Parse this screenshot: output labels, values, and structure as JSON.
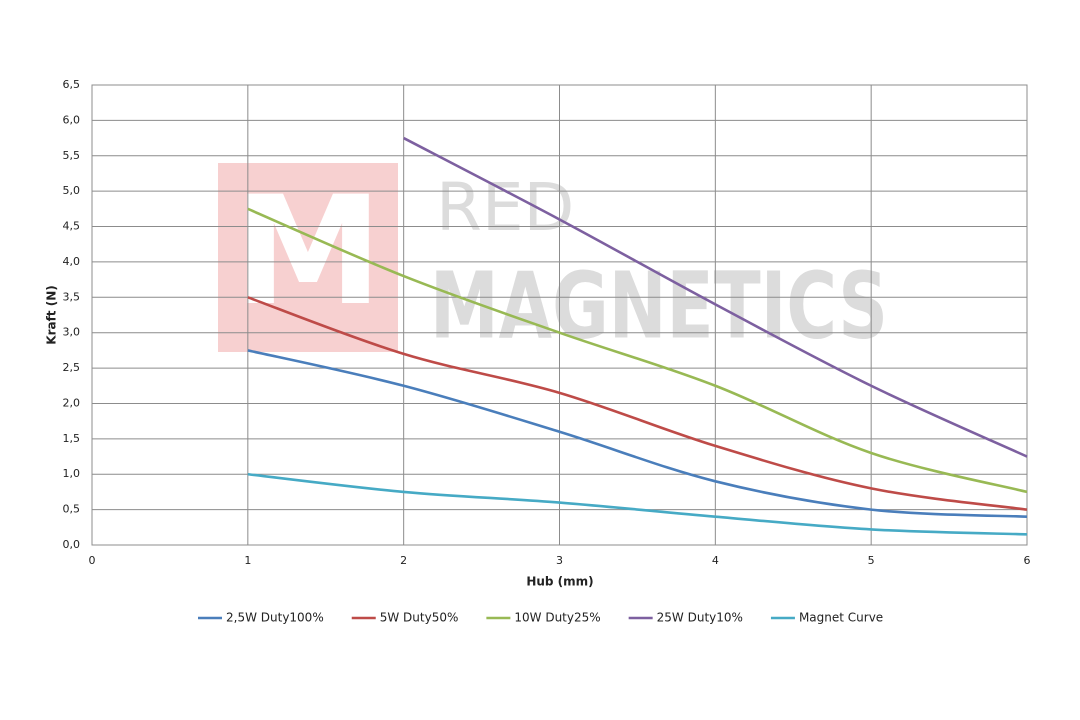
{
  "chart_data": {
    "type": "line",
    "x_label": "Hub (mm)",
    "y_label": "Kraft (N)",
    "x": [
      1,
      2,
      3,
      4,
      5,
      6
    ],
    "series": [
      {
        "name": "2,5W Duty100%",
        "color": "#4a7ebb",
        "values": [
          2.75,
          2.25,
          1.6,
          0.9,
          0.5,
          0.4
        ]
      },
      {
        "name": "5W Duty50%",
        "color": "#be4b48",
        "values": [
          3.5,
          2.7,
          2.15,
          1.4,
          0.8,
          0.5
        ]
      },
      {
        "name": "10W Duty25%",
        "color": "#98b954",
        "values": [
          4.75,
          3.8,
          3.0,
          2.25,
          1.3,
          0.75
        ]
      },
      {
        "name": "25W Duty10%",
        "color": "#7d60a0",
        "values": [
          null,
          5.75,
          4.6,
          3.4,
          2.25,
          1.25
        ]
      },
      {
        "name": "Magnet Curve",
        "color": "#46aac5",
        "values": [
          1.0,
          0.75,
          0.6,
          0.4,
          0.22,
          0.15
        ]
      }
    ],
    "xlim": [
      0,
      6
    ],
    "xticks": [
      0,
      1,
      2,
      3,
      4,
      5,
      6
    ],
    "ylim": [
      0,
      6.5
    ],
    "yticks": [
      {
        "value": 0,
        "label": "0,0"
      },
      {
        "value": 0.5,
        "label": "0,5"
      },
      {
        "value": 1,
        "label": "1,0"
      },
      {
        "value": 1.5,
        "label": "1,5"
      },
      {
        "value": 2,
        "label": "2,0"
      },
      {
        "value": 2.5,
        "label": "2,5"
      },
      {
        "value": 3,
        "label": "3,0"
      },
      {
        "value": 3.5,
        "label": "3,5"
      },
      {
        "value": 4,
        "label": "4,0"
      },
      {
        "value": 4.5,
        "label": "4,5"
      },
      {
        "value": 5,
        "label": "5,0"
      },
      {
        "value": 5.5,
        "label": "5,5"
      },
      {
        "value": 6,
        "label": "6,0"
      },
      {
        "value": 6.5,
        "label": "6,5"
      }
    ],
    "grid": true,
    "smooth": true,
    "legend": "bottom"
  },
  "watermark": {
    "logo": "M",
    "line1": "RED",
    "line2": "MAGNETICS"
  }
}
